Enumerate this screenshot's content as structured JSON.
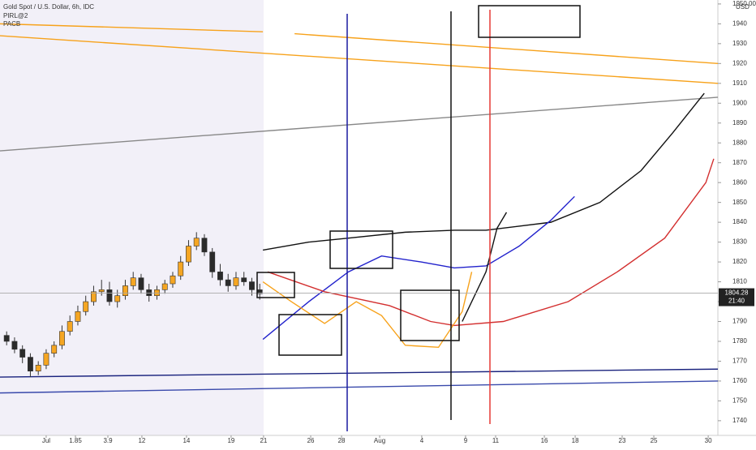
{
  "chart_data": {
    "type": "candlestick",
    "title": "Gold Spot / U.S. Dollar, 6h, IDC",
    "indicators": [
      "PIRL@2",
      "PACB"
    ],
    "currency": "USD",
    "last_price": 1804.28,
    "countdown": "21:40",
    "xlim": [
      -2.92,
      42.46
    ],
    "ylim": [
      1732.6,
      1952.0
    ],
    "xticks": [
      {
        "value": 0,
        "label": "Jul"
      },
      1.85,
      3.9,
      {
        "value": 6.05,
        "label": "12"
      },
      {
        "value": 8.87,
        "label": "14"
      },
      {
        "value": 11.69,
        "label": "19"
      },
      {
        "value": 13.74,
        "label": "21"
      },
      {
        "value": 16.72,
        "label": "26"
      },
      {
        "value": 18.67,
        "label": "28"
      },
      {
        "value": 21.08,
        "label": "Aug"
      },
      {
        "value": 23.74,
        "label": "4"
      },
      {
        "value": 26.51,
        "label": "9"
      },
      {
        "value": 28.41,
        "label": "11"
      },
      {
        "value": 31.49,
        "label": "16"
      },
      {
        "value": 33.44,
        "label": "18"
      },
      {
        "value": 36.41,
        "label": "23"
      },
      {
        "value": 38.41,
        "label": "25"
      },
      {
        "value": 41.85,
        "label": "30"
      }
    ],
    "yticks": [
      1740,
      1750,
      1760,
      1770,
      1780,
      1790,
      1800,
      1810,
      1820,
      1830,
      1840,
      1850,
      1860,
      1870,
      1880,
      1890,
      1900,
      1910,
      1920,
      1930,
      1940,
      {
        "value": 1950,
        "label": "1950.00"
      }
    ],
    "up_color": "#f5a623",
    "down_color": "#2b2b2b",
    "candles": {
      "x": [
        -2.5,
        -2,
        -1.5,
        -1,
        -0.5,
        0,
        0.5,
        1,
        1.5,
        2,
        2.5,
        3,
        3.5,
        4,
        4.5,
        5,
        5.5,
        6,
        6.5,
        7,
        7.5,
        8,
        8.5,
        9,
        9.5,
        10,
        10.5,
        11,
        11.5,
        12,
        12.5,
        13,
        13.5
      ],
      "open": [
        1783,
        1780,
        1776,
        1772,
        1765,
        1768,
        1774,
        1778,
        1785,
        1790,
        1795,
        1800,
        1805,
        1806,
        1800,
        1803,
        1808,
        1812,
        1806,
        1803,
        1806,
        1809,
        1813,
        1820,
        1828,
        1832,
        1825,
        1815,
        1811,
        1808,
        1812,
        1810,
        1806
      ],
      "high": [
        1785,
        1782,
        1778,
        1774,
        1770,
        1776,
        1780,
        1788,
        1793,
        1798,
        1803,
        1808,
        1811,
        1810,
        1806,
        1811,
        1815,
        1814,
        1809,
        1808,
        1811,
        1815,
        1823,
        1831,
        1835,
        1834,
        1827,
        1819,
        1814,
        1815,
        1815,
        1812,
        1809
      ],
      "low": [
        1778,
        1774,
        1769,
        1762,
        1763,
        1766,
        1772,
        1776,
        1783,
        1788,
        1793,
        1798,
        1803,
        1798,
        1797,
        1801,
        1806,
        1804,
        1800,
        1801,
        1804,
        1807,
        1811,
        1818,
        1826,
        1823,
        1812,
        1808,
        1805,
        1806,
        1808,
        1803,
        1801
      ],
      "close": [
        1780,
        1776,
        1772,
        1765,
        1768,
        1774,
        1778,
        1785,
        1790,
        1795,
        1800,
        1805,
        1806,
        1800,
        1803,
        1808,
        1812,
        1806,
        1803,
        1806,
        1809,
        1813,
        1820,
        1828,
        1832,
        1825,
        1815,
        1811,
        1808,
        1812,
        1810,
        1806,
        1804
      ]
    },
    "series": [
      {
        "color": "#f7a21b",
        "x": [
          -2.92,
          13.7
        ],
        "values": [
          1940,
          1936
        ]
      },
      {
        "color": "#f7a21b",
        "x": [
          15.7,
          42.46
        ],
        "values": [
          1935,
          1920
        ]
      },
      {
        "color": "#f7a21b",
        "x": [
          -2.92,
          42.46
        ],
        "values": [
          1934,
          1910
        ]
      },
      {
        "color": "#888888",
        "x": [
          -2.92,
          42.46
        ],
        "values": [
          1876,
          1903
        ]
      },
      {
        "color": "#1a237e",
        "x": [
          -2.92,
          42.46
        ],
        "values": [
          1762,
          1766
        ]
      },
      {
        "color": "#3949ab",
        "x": [
          -2.92,
          42.46
        ],
        "values": [
          1754,
          1760
        ]
      },
      {
        "color": "#111111",
        "x": [
          13.7,
          16.6,
          19.1,
          22.7,
          25.8,
          27.8,
          31.9,
          35.0,
          37.6,
          39.6,
          41.6
        ],
        "values": [
          1826,
          1830,
          1832,
          1835,
          1836,
          1836,
          1840,
          1850,
          1866,
          1885,
          1905
        ]
      },
      {
        "color": "#2222cc",
        "x": [
          13.7,
          16.6,
          19.1,
          21.2,
          23.7,
          25.8,
          27.8,
          29.9,
          31.9,
          33.4
        ],
        "values": [
          1781,
          1800,
          1815,
          1823,
          1820,
          1817,
          1818,
          1828,
          1841,
          1853
        ]
      },
      {
        "color": "#d32f2f",
        "x": [
          14.0,
          17.6,
          21.7,
          24.3,
          25.8,
          28.9,
          33.0,
          36.1,
          39.1,
          41.7,
          42.2
        ],
        "values": [
          1815,
          1805,
          1798,
          1790,
          1788,
          1790,
          1800,
          1815,
          1832,
          1860,
          1872
        ]
      },
      {
        "color": "#f7a21b",
        "x": [
          13.7,
          15.5,
          17.6,
          19.6,
          21.2,
          22.7,
          24.8,
          26.3,
          26.9
        ],
        "values": [
          1810,
          1800,
          1789,
          1800,
          1793,
          1778,
          1777,
          1795,
          1815
        ]
      },
      {
        "color": "#111111",
        "x": [
          26.3,
          27.8,
          28.5,
          29.1
        ],
        "values": [
          1790,
          1815,
          1837,
          1845
        ]
      }
    ]
  }
}
